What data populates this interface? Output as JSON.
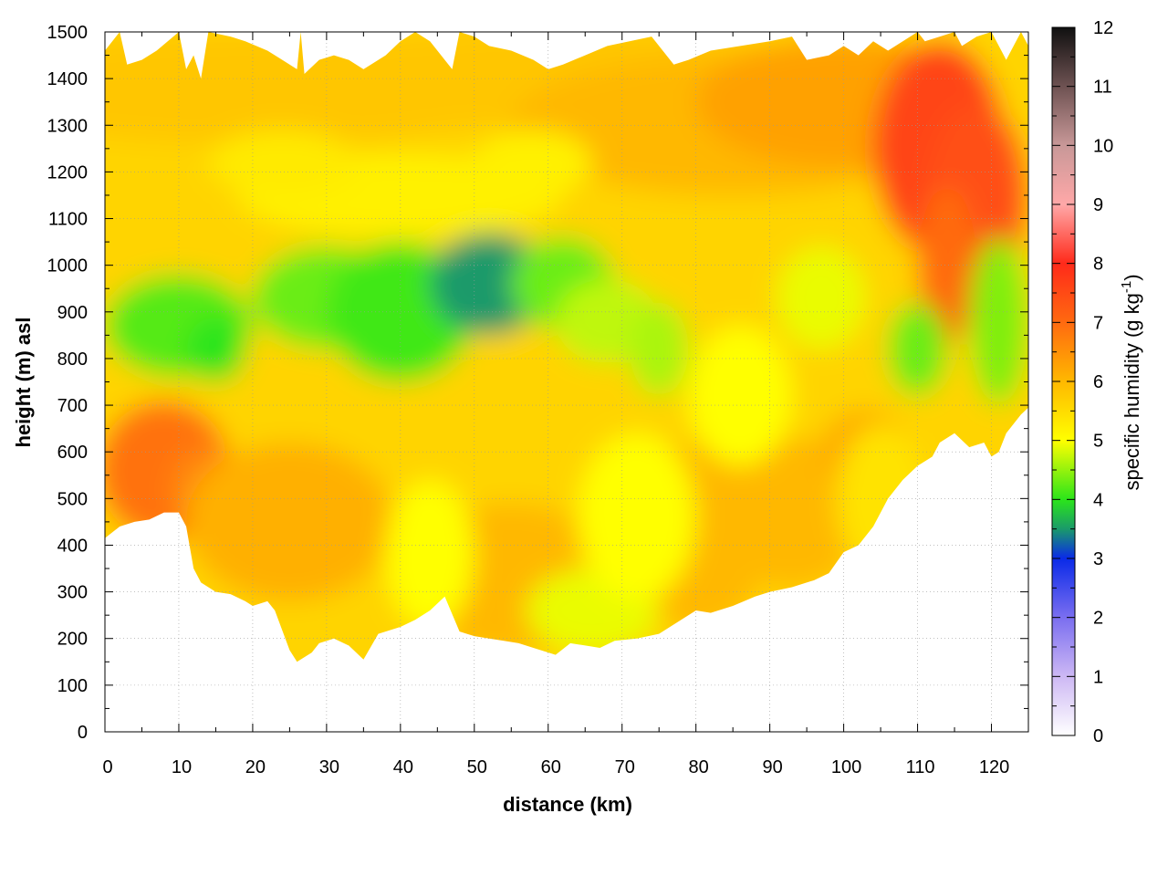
{
  "chart_data": {
    "type": "heatmap",
    "title": "",
    "xlabel": "distance (km)",
    "ylabel": "height (m) asl",
    "xlim": [
      0,
      125
    ],
    "ylim": [
      0,
      1500
    ],
    "x_ticks": [
      0,
      10,
      20,
      30,
      40,
      50,
      60,
      70,
      80,
      90,
      100,
      110,
      120
    ],
    "y_ticks": [
      0,
      100,
      200,
      300,
      400,
      500,
      600,
      700,
      800,
      900,
      1000,
      1100,
      1200,
      1300,
      1400,
      1500
    ],
    "grid": true,
    "colorbar": {
      "label_main": "specific humidity (g kg",
      "label_sup": "-1",
      "label_end": ")",
      "range": [
        0,
        12
      ],
      "ticks": [
        0,
        1,
        2,
        3,
        4,
        5,
        6,
        7,
        8,
        9,
        10,
        11,
        12
      ],
      "stops": [
        {
          "value": 0,
          "color": "#ffffff"
        },
        {
          "value": 1,
          "color": "#cdb8f4"
        },
        {
          "value": 2,
          "color": "#7a6ef0"
        },
        {
          "value": 3,
          "color": "#0a2ae8"
        },
        {
          "value": 3.5,
          "color": "#1a9a6a"
        },
        {
          "value": 4,
          "color": "#2be51a"
        },
        {
          "value": 5,
          "color": "#ffff00"
        },
        {
          "value": 6,
          "color": "#ffb800"
        },
        {
          "value": 7,
          "color": "#ff6a10"
        },
        {
          "value": 8,
          "color": "#ff2a1a"
        },
        {
          "value": 9,
          "color": "#ffa8a8"
        },
        {
          "value": 10,
          "color": "#c89898"
        },
        {
          "value": 11,
          "color": "#6e5252"
        },
        {
          "value": 12,
          "color": "#101010"
        }
      ]
    },
    "bottom_boundary_m": [
      [
        0,
        415
      ],
      [
        2,
        440
      ],
      [
        4,
        450
      ],
      [
        6,
        455
      ],
      [
        8,
        470
      ],
      [
        10,
        470
      ],
      [
        11,
        440
      ],
      [
        12,
        350
      ],
      [
        13,
        320
      ],
      [
        15,
        300
      ],
      [
        17,
        295
      ],
      [
        19,
        280
      ],
      [
        20,
        270
      ],
      [
        22,
        280
      ],
      [
        23,
        260
      ],
      [
        25,
        175
      ],
      [
        26,
        150
      ],
      [
        28,
        170
      ],
      [
        29,
        190
      ],
      [
        31,
        200
      ],
      [
        33,
        185
      ],
      [
        35,
        155
      ],
      [
        37,
        210
      ],
      [
        40,
        225
      ],
      [
        42,
        240
      ],
      [
        44,
        260
      ],
      [
        46,
        290
      ],
      [
        48,
        215
      ],
      [
        50,
        205
      ],
      [
        52,
        200
      ],
      [
        54,
        195
      ],
      [
        56,
        190
      ],
      [
        58,
        180
      ],
      [
        61,
        165
      ],
      [
        63,
        190
      ],
      [
        65,
        185
      ],
      [
        67,
        180
      ],
      [
        69,
        195
      ],
      [
        72,
        200
      ],
      [
        75,
        210
      ],
      [
        78,
        240
      ],
      [
        80,
        260
      ],
      [
        82,
        255
      ],
      [
        85,
        270
      ],
      [
        88,
        290
      ],
      [
        90,
        300
      ],
      [
        93,
        310
      ],
      [
        96,
        325
      ],
      [
        98,
        340
      ],
      [
        100,
        385
      ],
      [
        102,
        400
      ],
      [
        104,
        440
      ],
      [
        106,
        500
      ],
      [
        108,
        540
      ],
      [
        110,
        570
      ],
      [
        112,
        590
      ],
      [
        113,
        620
      ],
      [
        115,
        640
      ],
      [
        117,
        610
      ],
      [
        119,
        620
      ],
      [
        120,
        590
      ],
      [
        121,
        600
      ],
      [
        122,
        640
      ],
      [
        124,
        680
      ],
      [
        125,
        695
      ]
    ],
    "top_boundary_m": [
      [
        0,
        1460
      ],
      [
        2,
        1500
      ],
      [
        3,
        1430
      ],
      [
        5,
        1440
      ],
      [
        7,
        1460
      ],
      [
        10,
        1500
      ],
      [
        11,
        1420
      ],
      [
        12,
        1450
      ],
      [
        13,
        1400
      ],
      [
        14,
        1500
      ],
      [
        17,
        1490
      ],
      [
        19,
        1480
      ],
      [
        22,
        1460
      ],
      [
        24,
        1440
      ],
      [
        26,
        1420
      ],
      [
        26.5,
        1500
      ],
      [
        27,
        1410
      ],
      [
        29,
        1440
      ],
      [
        31,
        1450
      ],
      [
        33,
        1440
      ],
      [
        35,
        1420
      ],
      [
        38,
        1450
      ],
      [
        40,
        1480
      ],
      [
        42,
        1500
      ],
      [
        44,
        1480
      ],
      [
        47,
        1420
      ],
      [
        48,
        1500
      ],
      [
        50,
        1490
      ],
      [
        52,
        1470
      ],
      [
        55,
        1460
      ],
      [
        58,
        1440
      ],
      [
        60,
        1420
      ],
      [
        62,
        1430
      ],
      [
        65,
        1450
      ],
      [
        68,
        1470
      ],
      [
        71,
        1480
      ],
      [
        74,
        1490
      ],
      [
        77,
        1430
      ],
      [
        79,
        1440
      ],
      [
        82,
        1460
      ],
      [
        86,
        1470
      ],
      [
        90,
        1480
      ],
      [
        93,
        1490
      ],
      [
        95,
        1440
      ],
      [
        98,
        1450
      ],
      [
        100,
        1470
      ],
      [
        102,
        1450
      ],
      [
        104,
        1480
      ],
      [
        106,
        1460
      ],
      [
        108,
        1480
      ],
      [
        110,
        1500
      ],
      [
        111,
        1480
      ],
      [
        113,
        1490
      ],
      [
        115,
        1500
      ],
      [
        116,
        1470
      ],
      [
        118,
        1490
      ],
      [
        120,
        1500
      ],
      [
        122,
        1440
      ],
      [
        124,
        1500
      ],
      [
        125,
        1470
      ]
    ]
  }
}
